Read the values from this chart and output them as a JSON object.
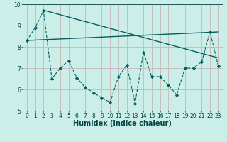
{
  "xlabel": "Humidex (Indice chaleur)",
  "bg_color": "#cceee8",
  "plot_bg_color": "#cceee8",
  "grid_color": "#c8b8b8",
  "line_color": "#006060",
  "xlim": [
    -0.5,
    23.5
  ],
  "ylim": [
    5,
    10
  ],
  "yticks": [
    5,
    6,
    7,
    8,
    9,
    10
  ],
  "xticks": [
    0,
    1,
    2,
    3,
    4,
    5,
    6,
    7,
    8,
    9,
    10,
    11,
    12,
    13,
    14,
    15,
    16,
    17,
    18,
    19,
    20,
    21,
    22,
    23
  ],
  "zigzag_x": [
    0,
    1,
    2,
    3,
    4,
    5,
    6,
    7,
    8,
    9,
    10,
    11,
    12,
    13,
    14,
    15,
    16,
    17,
    18,
    19,
    20,
    21,
    22,
    23
  ],
  "zigzag_y": [
    8.3,
    8.9,
    9.7,
    6.5,
    7.0,
    7.35,
    6.55,
    6.1,
    5.85,
    5.6,
    5.4,
    6.6,
    7.15,
    5.35,
    7.75,
    6.6,
    6.6,
    6.2,
    5.75,
    7.0,
    7.0,
    7.3,
    8.7,
    7.1
  ],
  "line1_x": [
    0,
    23
  ],
  "line1_y": [
    8.3,
    8.7
  ],
  "line2_x": [
    2,
    23
  ],
  "line2_y": [
    9.72,
    7.48
  ],
  "xlabel_fontsize": 7,
  "tick_fontsize": 5.5,
  "label_color": "#004444"
}
